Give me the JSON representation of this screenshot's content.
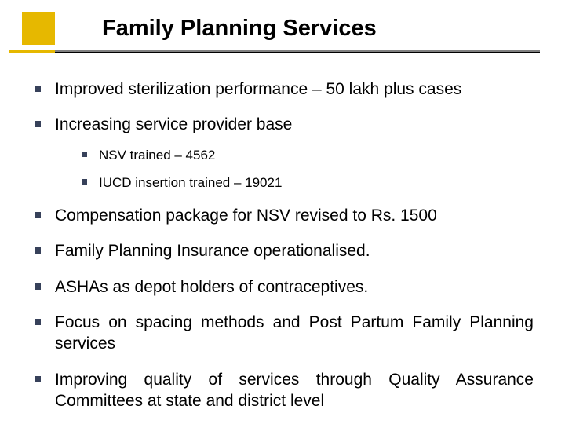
{
  "colors": {
    "accent": "#e6b800",
    "rule_gray": "#808080",
    "rule_black": "#000000",
    "bullet": "#37415a",
    "background": "#ffffff",
    "text": "#000000"
  },
  "typography": {
    "title_fontsize": 29,
    "l1_fontsize": 21,
    "l2_fontsize": 17,
    "font_family": "Arial"
  },
  "title": "Family Planning Services",
  "bullets": [
    {
      "text": "Improved sterilization performance – 50 lakh plus cases",
      "justify": false
    },
    {
      "text": "Increasing service provider base",
      "justify": false,
      "sub": [
        {
          "text": "NSV trained – 4562"
        },
        {
          "text": "IUCD insertion trained – 19021"
        }
      ]
    },
    {
      "text": "Compensation package for NSV revised to Rs. 1500",
      "justify": false
    },
    {
      "text": "Family Planning Insurance operationalised.",
      "justify": false
    },
    {
      "text": "ASHAs as depot holders of contraceptives.",
      "justify": false
    },
    {
      "text": "Focus on spacing methods and Post Partum Family Planning services",
      "justify": true
    },
    {
      "text": "Improving quality of services through Quality Assurance Committees at state and district level",
      "justify": true
    }
  ]
}
